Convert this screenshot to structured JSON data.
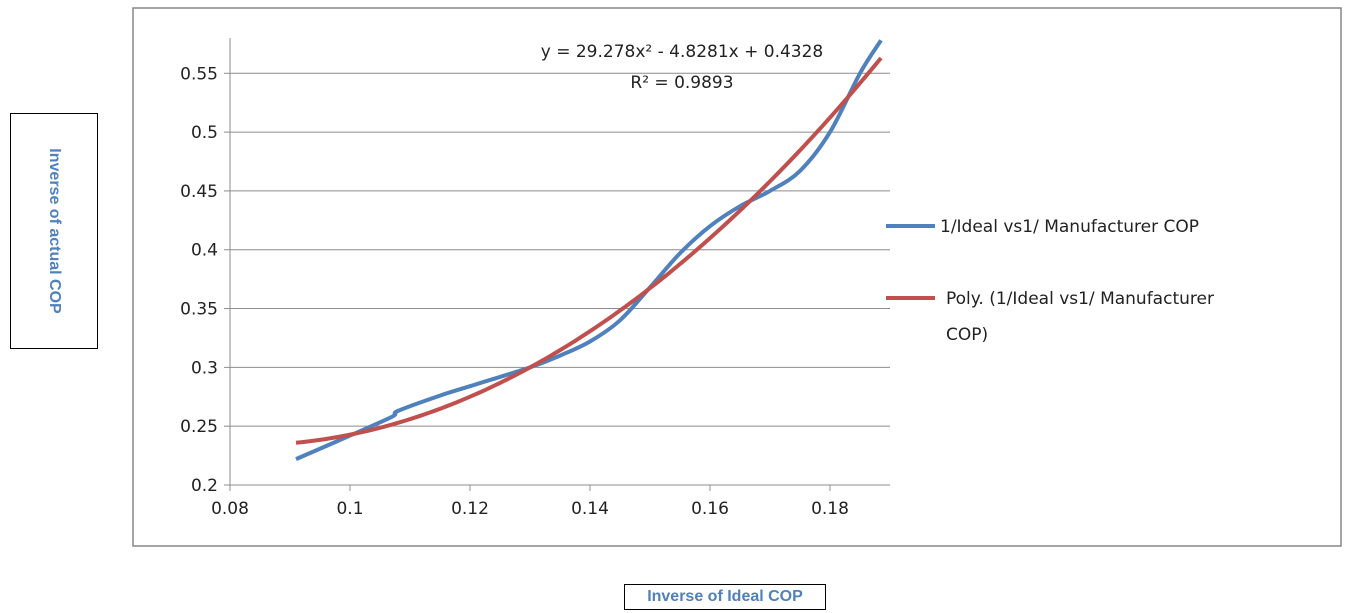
{
  "chart_data": {
    "type": "line",
    "xlabel": "Inverse of Ideal COP",
    "ylabel": "Inverse of actual COP",
    "xlim": [
      0.08,
      0.19
    ],
    "ylim": [
      0.2,
      0.58
    ],
    "x_ticks": [
      "0.08",
      "0.1",
      "0.12",
      "0.14",
      "0.16",
      "0.18"
    ],
    "y_ticks": [
      "0.2",
      "0.25",
      "0.3",
      "0.35",
      "0.4",
      "0.45",
      "0.5",
      "0.55"
    ],
    "grid": "horizontal",
    "legend_placement": "right",
    "series": [
      {
        "name": "1/Ideal vs1/ Manufacturer COP",
        "color": "#4f81bd",
        "points": [
          [
            0.091,
            0.222
          ],
          [
            0.1,
            0.242
          ],
          [
            0.107,
            0.258
          ],
          [
            0.108,
            0.263
          ],
          [
            0.115,
            0.276
          ],
          [
            0.12,
            0.284
          ],
          [
            0.13,
            0.3
          ],
          [
            0.135,
            0.31
          ],
          [
            0.14,
            0.322
          ],
          [
            0.145,
            0.34
          ],
          [
            0.15,
            0.368
          ],
          [
            0.155,
            0.397
          ],
          [
            0.16,
            0.42
          ],
          [
            0.165,
            0.437
          ],
          [
            0.17,
            0.45
          ],
          [
            0.175,
            0.467
          ],
          [
            0.18,
            0.5
          ],
          [
            0.185,
            0.55
          ],
          [
            0.1885,
            0.578
          ]
        ]
      },
      {
        "name": "Poly. (1/Ideal vs1/ Manufacturer COP)",
        "legend_lines": [
          "Poly. (1/Ideal vs1/ Manufacturer",
          "COP)"
        ],
        "color": "#c0504d",
        "trendline": {
          "type": "poly2",
          "a": 29.278,
          "b": -4.8281,
          "c": 0.4328,
          "x_from": 0.091,
          "x_to": 0.1885
        }
      }
    ],
    "annotations": {
      "equation": "y = 29.278x² - 4.8281x + 0.4328",
      "r_squared": "R² = 0.9893"
    }
  }
}
